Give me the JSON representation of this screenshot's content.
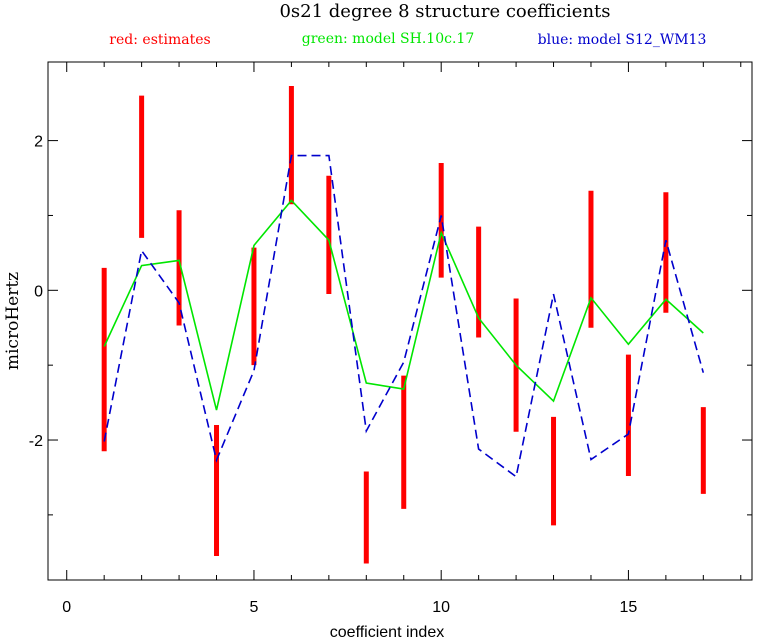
{
  "chart_data": {
    "type": "line",
    "title": "0s21 degree 8 structure coefficients",
    "legend": [
      {
        "text": "red: estimates",
        "color": "#ff0000"
      },
      {
        "text": "green: model SH.10c.17",
        "color": "#00e600"
      },
      {
        "text": "blue: model S12_WM13",
        "color": "#0000cc"
      }
    ],
    "legend_placement": "top",
    "xlabel": "coefficient index",
    "ylabel": "microHertz",
    "xlim": [
      -0.5,
      18.3
    ],
    "ylim": [
      -3.87,
      3.05
    ],
    "xticks": [
      0,
      5,
      10,
      15
    ],
    "xtick_labels": [
      "0",
      "5",
      "10",
      "15"
    ],
    "xminor": [
      1,
      2,
      3,
      4,
      6,
      7,
      8,
      9,
      11,
      12,
      13,
      14,
      16,
      17,
      18
    ],
    "yticks": [
      2,
      0,
      -2
    ],
    "ytick_labels": [
      "2",
      "0",
      "-2"
    ],
    "yminor": [
      -3,
      -1,
      1
    ],
    "grid": false,
    "errorbars": {
      "name": "estimates",
      "color": "#ff0000",
      "x": [
        1,
        2,
        3,
        4,
        5,
        6,
        7,
        8,
        9,
        10,
        11,
        12,
        13,
        14,
        15,
        16,
        17
      ],
      "low": [
        -2.15,
        0.7,
        -0.47,
        -3.55,
        -1.0,
        1.15,
        -0.05,
        -3.65,
        -2.92,
        0.17,
        -0.63,
        -1.89,
        -3.14,
        -0.5,
        -2.48,
        -0.3,
        -2.72
      ],
      "high": [
        0.3,
        2.6,
        1.07,
        -1.8,
        0.57,
        2.73,
        1.53,
        -2.42,
        -1.14,
        1.7,
        0.85,
        -0.11,
        -1.69,
        1.33,
        -0.86,
        1.31,
        -1.56
      ]
    },
    "series": [
      {
        "name": "model SH.10c.17",
        "color": "#00e600",
        "style": "solid",
        "x": [
          1,
          2,
          3,
          4,
          5,
          6,
          7,
          8,
          9,
          10,
          11,
          12,
          13,
          14,
          15,
          16,
          17
        ],
        "values": [
          -0.75,
          0.33,
          0.4,
          -1.6,
          0.6,
          1.2,
          0.67,
          -1.24,
          -1.32,
          0.77,
          -0.37,
          -1.0,
          -1.48,
          -0.1,
          -0.72,
          -0.12,
          -0.57
        ]
      },
      {
        "name": "model S12_WM13",
        "color": "#0000cc",
        "style": "dashed",
        "x": [
          1,
          2,
          3,
          4,
          5,
          6,
          7,
          8,
          9,
          10,
          11,
          12,
          13,
          14,
          15,
          16,
          17
        ],
        "values": [
          -2.02,
          0.53,
          -0.17,
          -2.27,
          -1.07,
          1.8,
          1.8,
          -1.88,
          -0.96,
          1.0,
          -2.12,
          -2.49,
          -0.05,
          -2.26,
          -1.92,
          0.67,
          -1.1
        ]
      }
    ]
  }
}
